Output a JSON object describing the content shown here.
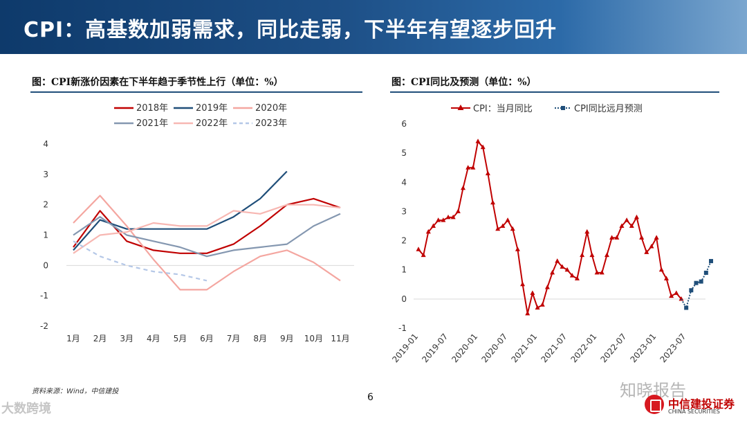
{
  "header": {
    "title": "CPI：高基数加弱需求，同比走弱，下半年有望逐步回升"
  },
  "left_figure": {
    "title": "图：CPI新涨价因素在下半年趋于季节性上行（单位：%）"
  },
  "right_figure": {
    "title": "图：CPI同比及预测（单位：%）"
  },
  "footer": {
    "source": "资料来源：Wind，中信建投",
    "page_number": "6"
  },
  "watermarks": {
    "left": "大数跨境",
    "right": "知晓报告"
  },
  "brand": {
    "name_cn": "中信建投证券",
    "name_en": "CHINA SECURITIES",
    "color": "#c00000"
  },
  "chart_data": [
    {
      "type": "line",
      "categories": [
        "1月",
        "2月",
        "3月",
        "4月",
        "5月",
        "6月",
        "7月",
        "8月",
        "9月",
        "10月",
        "11月"
      ],
      "ylim": [
        -2,
        4
      ],
      "yticks": [
        "-2",
        "-1",
        "0",
        "1",
        "2",
        "3",
        "4"
      ],
      "grid": false,
      "legend_position": "top",
      "series": [
        {
          "name": "2018年",
          "color": "#c00000",
          "dash": false,
          "values": [
            0.6,
            1.8,
            0.8,
            0.5,
            0.4,
            0.4,
            0.7,
            1.3,
            2.0,
            2.2,
            1.9
          ]
        },
        {
          "name": "2019年",
          "color": "#1f4e79",
          "dash": false,
          "values": [
            0.5,
            1.5,
            1.2,
            1.2,
            1.2,
            1.2,
            1.6,
            2.2,
            3.1,
            null,
            null
          ]
        },
        {
          "name": "2020年",
          "color": "#f4a6a0",
          "dash": false,
          "values": [
            1.4,
            2.3,
            1.3,
            0.2,
            -0.8,
            -0.8,
            -0.2,
            0.3,
            0.5,
            0.1,
            -0.5
          ]
        },
        {
          "name": "2021年",
          "color": "#8497b0",
          "dash": false,
          "values": [
            1.0,
            1.6,
            1.0,
            0.8,
            0.6,
            0.3,
            0.5,
            0.6,
            0.7,
            1.3,
            1.7
          ]
        },
        {
          "name": "2022年",
          "color": "#f7b7b2",
          "dash": false,
          "values": [
            0.4,
            1.0,
            1.1,
            1.4,
            1.3,
            1.3,
            1.8,
            1.7,
            2.0,
            2.0,
            1.9
          ]
        },
        {
          "name": "2023年",
          "color": "#b4c7e7",
          "dash": true,
          "values": [
            0.8,
            0.3,
            0.0,
            -0.2,
            -0.3,
            -0.5,
            null,
            null,
            null,
            null,
            null
          ]
        }
      ]
    },
    {
      "type": "line",
      "ylim": [
        -1,
        6
      ],
      "yticks": [
        "-1",
        "0",
        "1",
        "2",
        "3",
        "4",
        "5",
        "6"
      ],
      "xticks": [
        "2019-01",
        "2019-07",
        "2020-01",
        "2020-07",
        "2021-01",
        "2021-07",
        "2022-01",
        "2022-07",
        "2023-01",
        "2023-07"
      ],
      "grid": false,
      "legend_position": "top",
      "series": [
        {
          "name": "CPI：当月同比",
          "color": "#c00000",
          "marker": "triangle",
          "start": "2019-01",
          "values": [
            1.7,
            1.5,
            2.3,
            2.5,
            2.7,
            2.7,
            2.8,
            2.8,
            3.0,
            3.8,
            4.5,
            4.5,
            5.4,
            5.2,
            4.3,
            3.3,
            2.4,
            2.5,
            2.7,
            2.4,
            1.7,
            0.5,
            -0.5,
            0.2,
            -0.3,
            -0.2,
            0.4,
            0.9,
            1.3,
            1.1,
            1.0,
            0.8,
            0.7,
            1.5,
            2.3,
            1.5,
            0.9,
            0.9,
            1.5,
            2.1,
            2.1,
            2.5,
            2.7,
            2.5,
            2.8,
            2.1,
            1.6,
            1.8,
            2.1,
            1.0,
            0.7,
            0.1,
            0.2,
            0.0
          ]
        },
        {
          "name": "CPI同比远月预测",
          "color": "#1f4e79",
          "marker": "square",
          "dotted": true,
          "start": "2023-06",
          "values": [
            0.0,
            -0.3,
            0.3,
            0.55,
            0.6,
            0.9,
            1.3
          ]
        }
      ]
    }
  ]
}
